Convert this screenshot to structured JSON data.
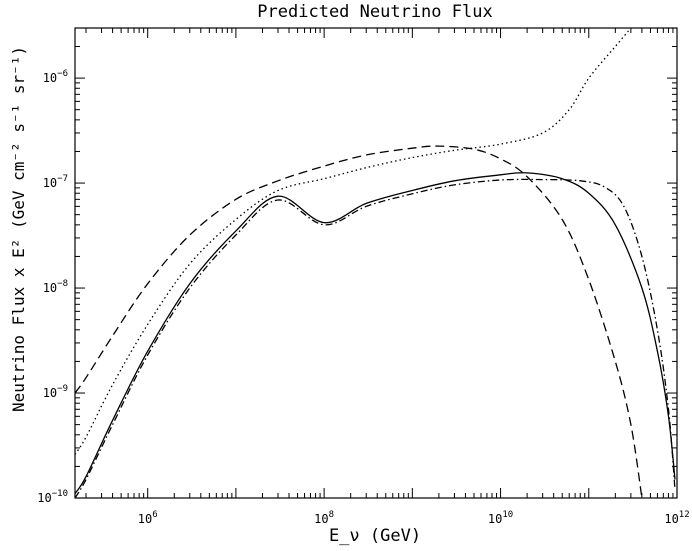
{
  "chart_data": {
    "type": "line",
    "title": "Predicted Neutrino Flux",
    "xlabel": "E_ν (GeV)",
    "ylabel": "Neutrino Flux x E² (GeV cm⁻² s⁻¹ sr⁻¹)",
    "x_scale": "log",
    "y_scale": "log",
    "xlim": [
      150000,
      1000000000000
    ],
    "ylim": [
      1e-10,
      3e-06
    ],
    "grid": false,
    "x_ticks": [
      {
        "base": "10",
        "exp": "6",
        "value": 1000000
      },
      {
        "base": "10",
        "exp": "8",
        "value": 100000000
      },
      {
        "base": "10",
        "exp": "10",
        "value": 10000000000
      },
      {
        "base": "10",
        "exp": "12",
        "value": 1000000000000
      }
    ],
    "y_ticks": [
      {
        "base": "10",
        "exp": "−10",
        "value": 1e-10
      },
      {
        "base": "10",
        "exp": "−9",
        "value": 1e-09
      },
      {
        "base": "10",
        "exp": "−8",
        "value": 1e-08
      },
      {
        "base": "10",
        "exp": "−7",
        "value": 1e-07
      },
      {
        "base": "10",
        "exp": "−6",
        "value": 1e-06
      }
    ],
    "series": [
      {
        "style": "solid",
        "points": [
          [
            150000,
            1.1e-10
          ],
          [
            200000,
            1.6e-10
          ],
          [
            400000,
            5.5e-10
          ],
          [
            1000000,
            2.5e-09
          ],
          [
            3000000,
            1.1e-08
          ],
          [
            10000000,
            3.5e-08
          ],
          [
            30000000,
            7.5e-08
          ],
          [
            100000000,
            4.2e-08
          ],
          [
            300000000,
            6.4e-08
          ],
          [
            1000000000,
            8.5e-08
          ],
          [
            3000000000,
            1.05e-07
          ],
          [
            10000000000,
            1.2e-07
          ],
          [
            20000000000,
            1.25e-07
          ],
          [
            50000000000,
            1.1e-07
          ],
          [
            100000000000,
            8e-08
          ],
          [
            200000000000,
            4e-08
          ],
          [
            400000000000,
            1e-08
          ],
          [
            600000000000,
            2.5e-09
          ],
          [
            800000000000,
            6e-10
          ],
          [
            950000000000,
            1.5e-10
          ]
        ]
      },
      {
        "style": "dashed",
        "points": [
          [
            150000,
            1e-09
          ],
          [
            200000,
            1.4e-09
          ],
          [
            400000,
            3.5e-09
          ],
          [
            1000000,
            1.1e-08
          ],
          [
            3000000,
            3.2e-08
          ],
          [
            10000000,
            7e-08
          ],
          [
            30000000,
            1.05e-07
          ],
          [
            100000000,
            1.45e-07
          ],
          [
            300000000,
            1.85e-07
          ],
          [
            1000000000,
            2.15e-07
          ],
          [
            2000000000,
            2.25e-07
          ],
          [
            5000000000,
            2.1e-07
          ],
          [
            10000000000,
            1.7e-07
          ],
          [
            20000000000,
            1.15e-07
          ],
          [
            50000000000,
            4.5e-08
          ],
          [
            100000000000,
            1.2e-08
          ],
          [
            200000000000,
            2e-09
          ],
          [
            300000000000,
            5e-10
          ],
          [
            400000000000,
            1e-10
          ]
        ]
      },
      {
        "style": "dotted",
        "points": [
          [
            150000,
            2.6e-10
          ],
          [
            200000,
            3.8e-10
          ],
          [
            400000,
            1.2e-09
          ],
          [
            1000000,
            4.5e-09
          ],
          [
            3000000,
            1.7e-08
          ],
          [
            10000000,
            4.5e-08
          ],
          [
            30000000,
            8.5e-08
          ],
          [
            100000000,
            1.1e-07
          ],
          [
            300000000,
            1.4e-07
          ],
          [
            1000000000,
            1.75e-07
          ],
          [
            3000000000,
            2.05e-07
          ],
          [
            10000000000,
            2.35e-07
          ],
          [
            30000000000,
            3e-07
          ],
          [
            60000000000,
            5e-07
          ],
          [
            100000000000,
            1e-06
          ],
          [
            200000000000,
            2e-06
          ],
          [
            300000000000,
            3e-06
          ]
        ]
      },
      {
        "style": "dash-dot",
        "points": [
          [
            150000,
            1e-10
          ],
          [
            200000,
            1.5e-10
          ],
          [
            400000,
            5e-10
          ],
          [
            1000000,
            2.3e-09
          ],
          [
            3000000,
            1e-08
          ],
          [
            10000000,
            3.2e-08
          ],
          [
            30000000,
            6.9e-08
          ],
          [
            100000000,
            4e-08
          ],
          [
            300000000,
            6e-08
          ],
          [
            1000000000,
            7.9e-08
          ],
          [
            3000000000,
            9.6e-08
          ],
          [
            10000000000,
            1.07e-07
          ],
          [
            30000000000,
            1.08e-07
          ],
          [
            80000000000,
            1.05e-07
          ],
          [
            150000000000,
            9.2e-08
          ],
          [
            250000000000,
            6e-08
          ],
          [
            400000000000,
            2e-08
          ],
          [
            600000000000,
            4e-09
          ],
          [
            800000000000,
            7e-10
          ],
          [
            950000000000,
            1.2e-10
          ]
        ]
      }
    ]
  }
}
